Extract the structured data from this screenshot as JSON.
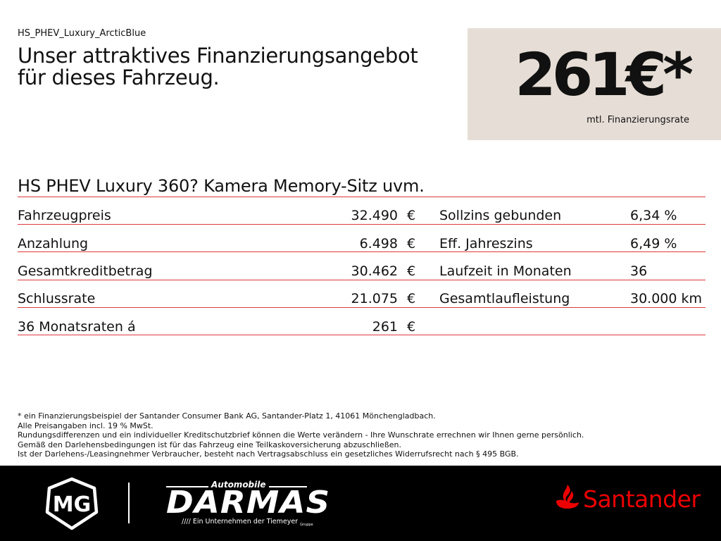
{
  "file_tag": "HS_PHEV_Luxury_ArcticBlue",
  "headline": [
    "Unser attraktives Finanzierungsangebot",
    "für dieses Fahrzeug."
  ],
  "rate": {
    "value": "261€*",
    "caption": "mtl. Finanzierungsrate"
  },
  "model": "HS PHEV Luxury 360? Kamera Memory-Sitz uvm.",
  "left_rows": [
    {
      "label": "Fahrzeugpreis",
      "value": "32.490",
      "unit": "€"
    },
    {
      "label": "Anzahlung",
      "value": "6.498",
      "unit": "€"
    },
    {
      "label": "Gesamtkreditbetrag",
      "value": "30.462",
      "unit": "€"
    },
    {
      "label": "Schlussrate",
      "value": "21.075",
      "unit": "€"
    },
    {
      "label": "36 Monatsraten á",
      "value": "261",
      "unit": "€"
    }
  ],
  "right_rows": [
    {
      "label": "Sollzins gebunden",
      "value": "6,34 %"
    },
    {
      "label": "Eff. Jahreszins",
      "value": "6,49 %"
    },
    {
      "label": "Laufzeit in Monaten",
      "value": "36"
    },
    {
      "label": "Gesamtlaufleistung",
      "value": "30.000 km"
    }
  ],
  "footnotes": [
    "* ein Finanzierungsbeispiel der Santander Consumer Bank AG, Santander-Platz 1, 41061 Mönchengladbach.",
    "Alle Preisangaben incl. 19 % MwSt.",
    "Rundungsdifferenzen und ein individueller Kreditschutzbrief können die Werte verändern - Ihre Wunschrate errechnen wir Ihnen gerne persönlich.",
    "Gemäß den Darlehensbedingungen ist für das Fahrzeug eine Teilkaskoversicherung abzuschließen.",
    "Ist der Darlehens-/Leasingnehmer Verbraucher, besteht nach Vertragsabschluss ein gesetzliches Widerrufsrecht nach § 495 BGB."
  ],
  "footer": {
    "mg_logo_text": "MG",
    "darmas_top": "Automobile",
    "darmas_main": "DARMAS",
    "darmas_sub": "//// Ein Unternehmen der Tiemeyer",
    "darmas_sub_small": "Gruppe",
    "santander": "Santander"
  },
  "colors": {
    "rule": "#e0393a",
    "rate_box": "#e6ded6",
    "footer_bg": "#000000",
    "santander_red": "#ec0000"
  }
}
